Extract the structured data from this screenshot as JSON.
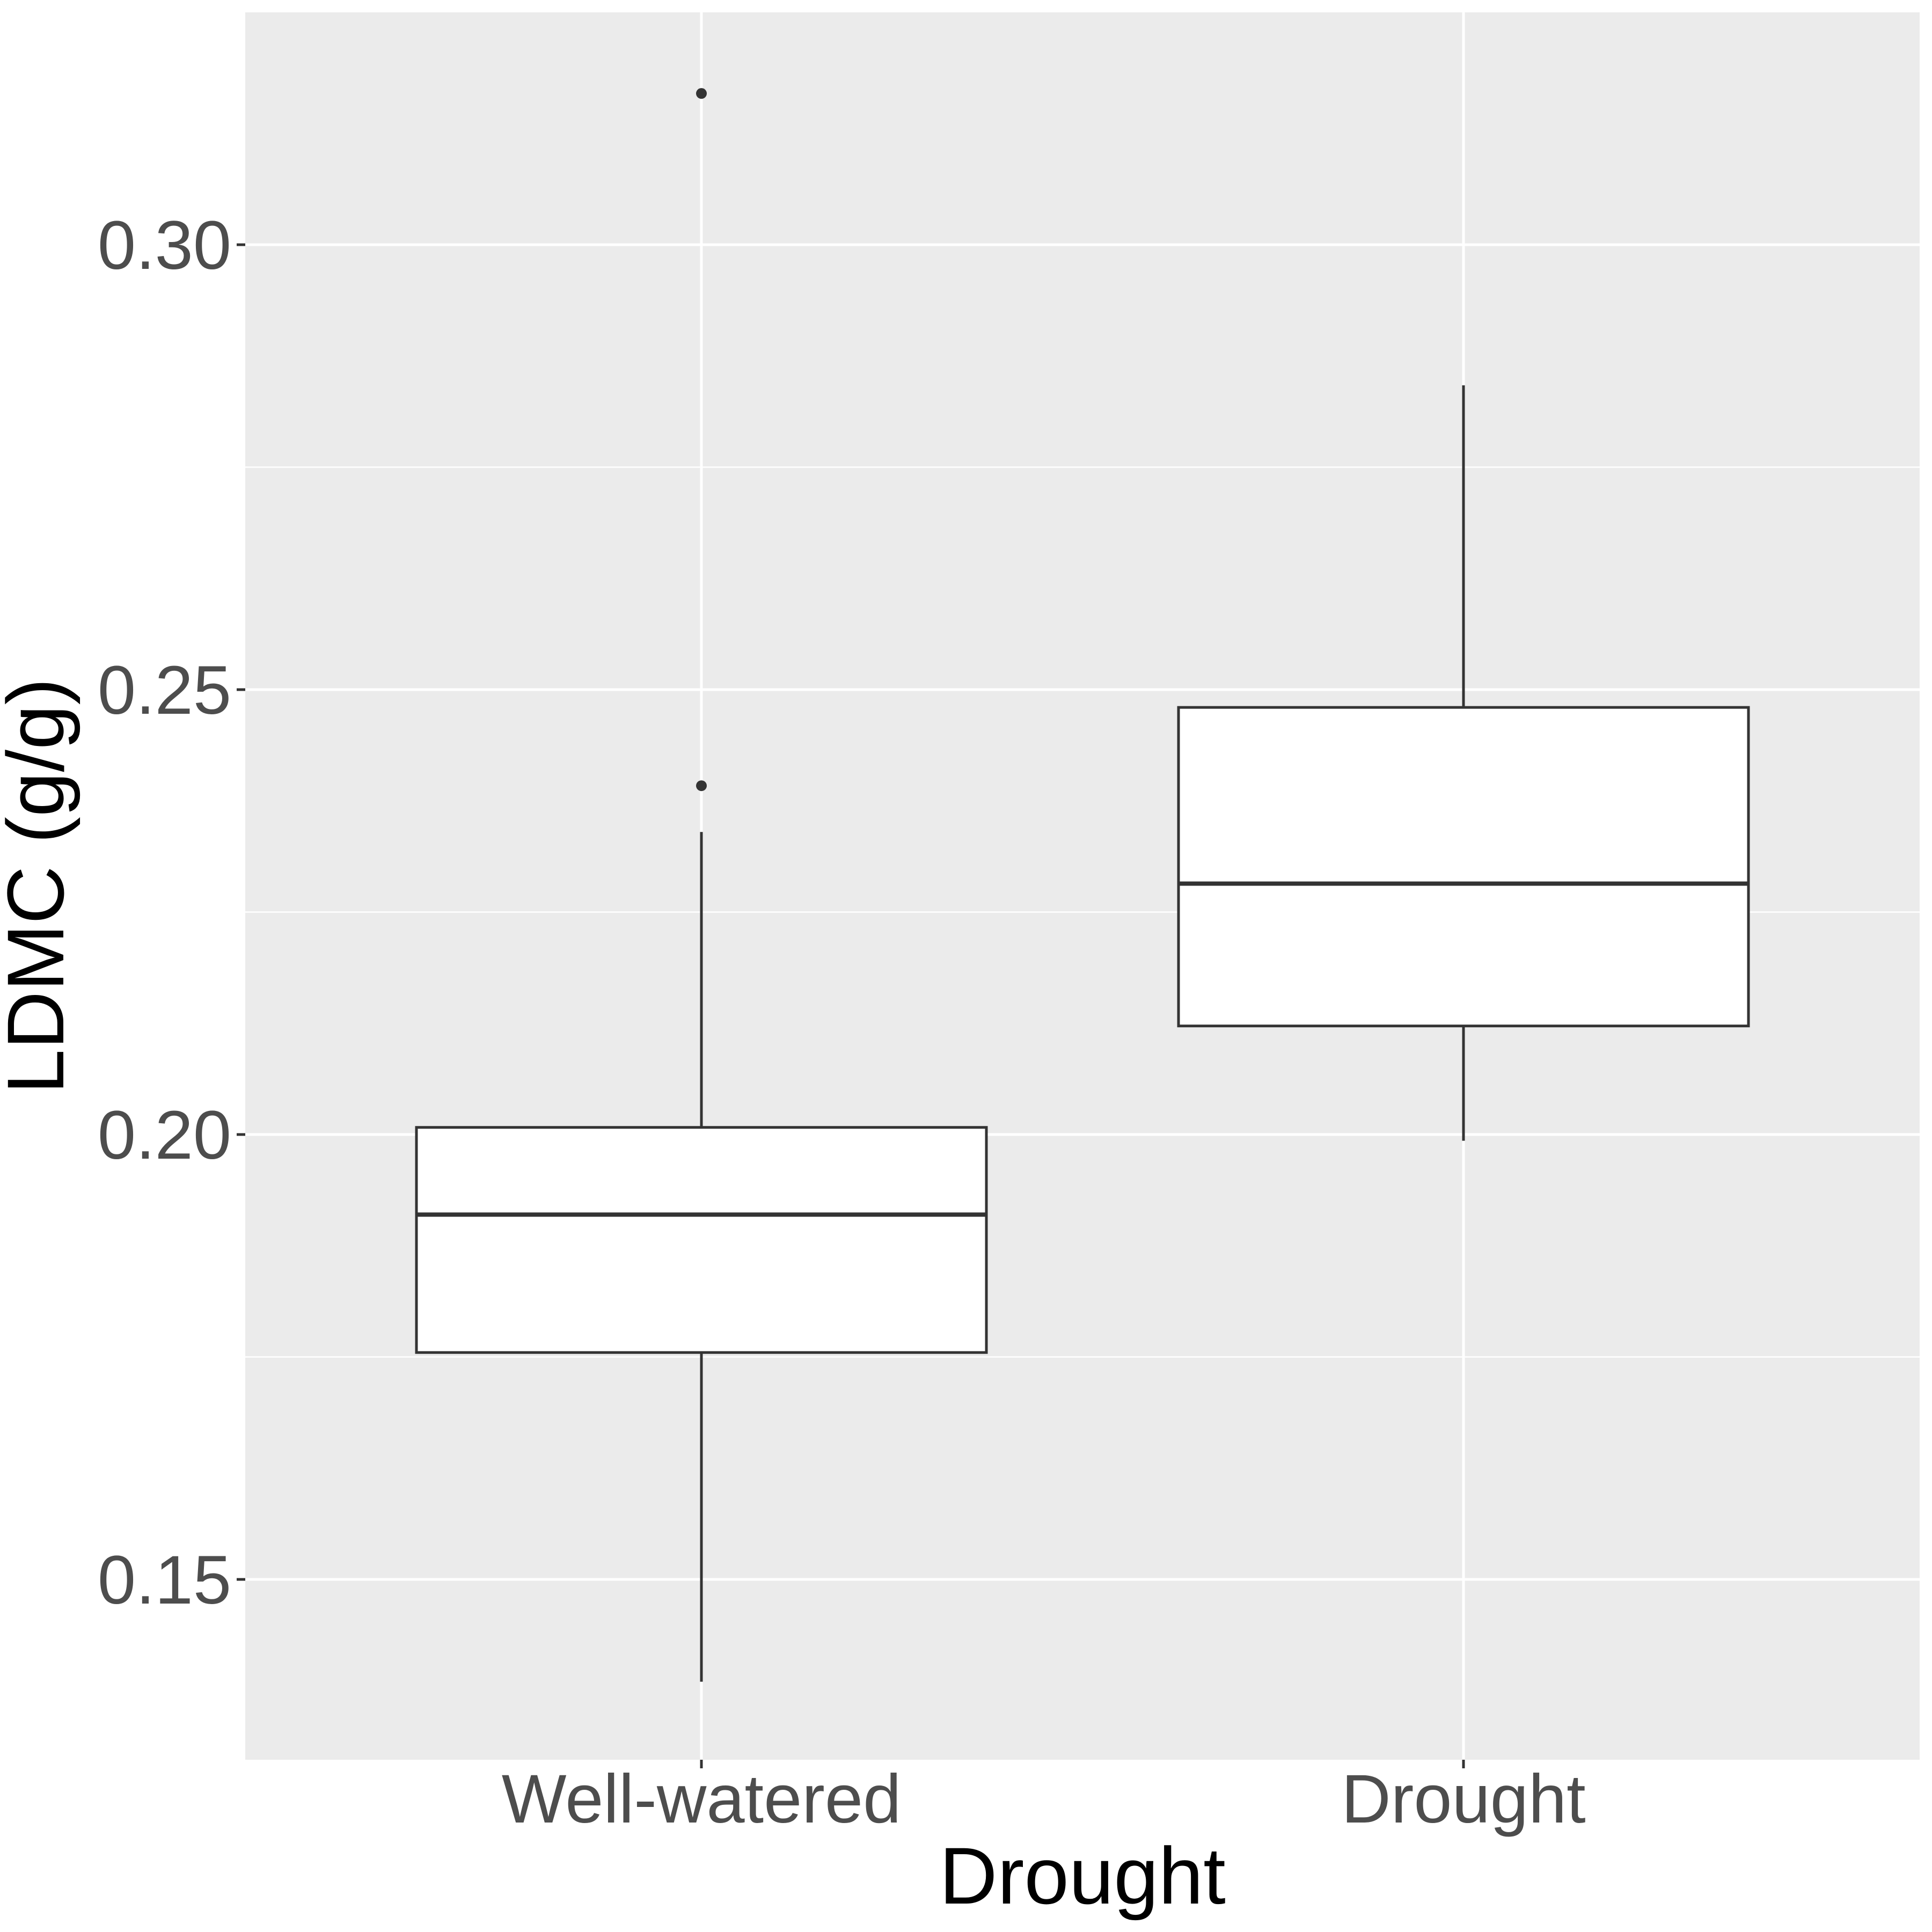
{
  "chart_data": {
    "type": "boxplot",
    "title": "",
    "xlabel": "Drought",
    "ylabel": "LDMC (g/g)",
    "ylim": [
      0.128,
      0.324
    ],
    "y_ticks": [
      0.15,
      0.2,
      0.25,
      0.3
    ],
    "y_tick_labels": [
      "0.15",
      "0.20",
      "0.25",
      "0.30"
    ],
    "grid": true,
    "legend": "none",
    "categories": [
      "Well-watered",
      "Drought"
    ],
    "boxes": [
      {
        "category": "Well-watered",
        "lower_whisker": 0.1385,
        "q1": 0.1755,
        "median": 0.191,
        "q3": 0.2008,
        "upper_whisker": 0.234,
        "outliers": [
          0.2392,
          0.317
        ]
      },
      {
        "category": "Drought",
        "lower_whisker": 0.1993,
        "q1": 0.2122,
        "median": 0.2282,
        "q3": 0.248,
        "upper_whisker": 0.2842,
        "outliers": []
      }
    ],
    "colors": {
      "panel_background": "#ebebeb",
      "grid_line": "#ffffff",
      "box_fill": "#ffffff",
      "box_stroke": "#333333",
      "tick_label": "#4d4d4d",
      "axis_title": "#000000"
    }
  }
}
